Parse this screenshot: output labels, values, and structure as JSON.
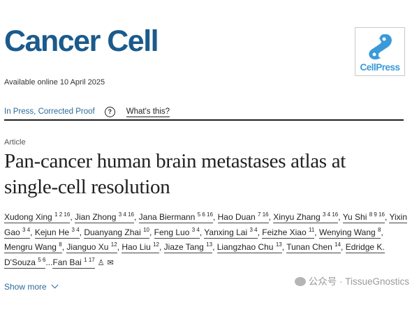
{
  "journal": {
    "name": "Cancer Cell",
    "publisher_logo": "CellPress",
    "brand_color": "#1b5a8c"
  },
  "available_online": "Available online 10 April 2025",
  "status": {
    "label": "In Press, Corrected Proof",
    "help_icon": "?",
    "whats_this": "What's this?"
  },
  "article_type": "Article",
  "title_lines": [
    "Pan-cancer human brain metastases atlas at",
    "single-cell resolution"
  ],
  "authors": [
    {
      "name": "Xudong Xing",
      "sup": "1 2 16"
    },
    {
      "name": "Jian Zhong",
      "sup": "3 4 16"
    },
    {
      "name": "Jana Biermann",
      "sup": "5 6 16"
    },
    {
      "name": "Hao Duan",
      "sup": "7 16"
    },
    {
      "name": "Xinyu Zhang",
      "sup": "3 4 16"
    },
    {
      "name": "Yu Shi",
      "sup": "8 9 16"
    },
    {
      "name": "Yixin Gao",
      "sup": "3 4"
    },
    {
      "name": "Kejun He",
      "sup": "3 4"
    },
    {
      "name": "Duanyang Zhai",
      "sup": "10"
    },
    {
      "name": "Feng Luo",
      "sup": "3 4"
    },
    {
      "name": "Yanxing Lai",
      "sup": "3 4"
    },
    {
      "name": "Feizhe Xiao",
      "sup": "11"
    },
    {
      "name": "Wenying Wang",
      "sup": "8"
    },
    {
      "name": "Mengru Wang",
      "sup": "8"
    },
    {
      "name": "Jianguo Xu",
      "sup": "12"
    },
    {
      "name": "Hao Liu",
      "sup": "12"
    },
    {
      "name": "Jiaze Tang",
      "sup": "13"
    },
    {
      "name": "Liangzhao Chu",
      "sup": "13"
    },
    {
      "name": "Tunan Chen",
      "sup": "14"
    },
    {
      "name": "Edridge K. D'Souza",
      "sup": "5 6"
    },
    {
      "name": "Fan Bai",
      "sup": "1 17"
    }
  ],
  "ellipsis": "...",
  "author_icons": [
    "person-icon",
    "envelope-icon"
  ],
  "show_more": "Show more",
  "watermark": "公众号 · TissueGnostics"
}
